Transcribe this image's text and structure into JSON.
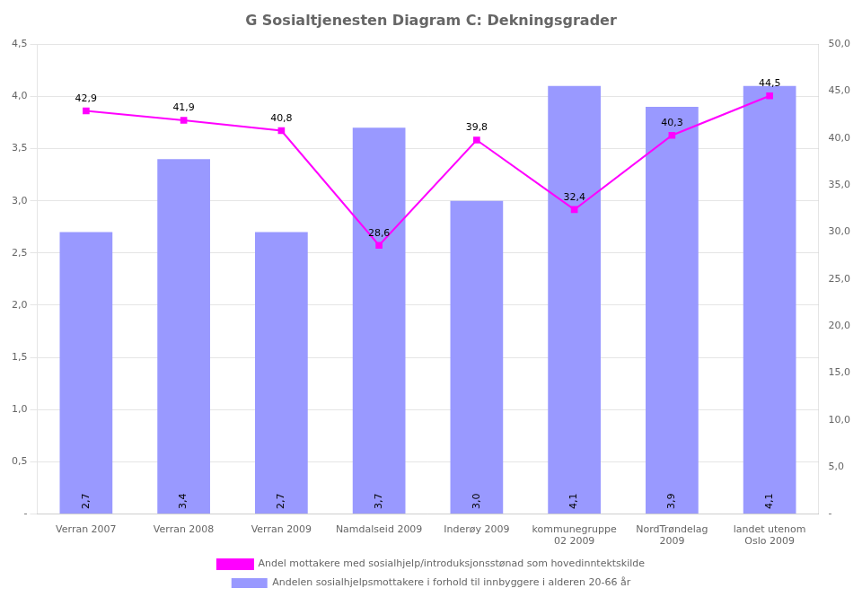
{
  "chart_data": {
    "type": "bar",
    "title": "G Sosialtjenesten Diagram C: Dekningsgrader",
    "categories": [
      "Verran 2007",
      "Verran 2008",
      "Verran 2009",
      "Namdalseid 2009",
      "Inderøy 2009",
      "kommunegruppe\n02 2009",
      "NordTrøndelag\n2009",
      "landet utenom\nOslo 2009"
    ],
    "series": [
      {
        "name": "Andelen sosialhjelpsmottakere i forhold til innbyggere i alderen 20-66 år",
        "type": "bar",
        "color": "#9999FF",
        "values": [
          2.7,
          3.4,
          2.7,
          3.7,
          3.0,
          4.1,
          3.9,
          4.1
        ],
        "value_labels": [
          "2,7",
          "3,4",
          "2,7",
          "3,7",
          "3,0",
          "4,1",
          "3,9",
          "4,1"
        ]
      },
      {
        "name": "Andel mottakere med sosialhjelp/introduksjonsstønad som hovedinntektskilde",
        "type": "line",
        "axis": "y2",
        "color": "#FF00FF",
        "marker": "square",
        "values": [
          42.9,
          41.9,
          40.8,
          28.6,
          39.8,
          32.4,
          40.3,
          44.5
        ],
        "value_labels": [
          "42,9",
          "41,9",
          "40,8",
          "28,6",
          "39,8",
          "32,4",
          "40,3",
          "44,5"
        ]
      }
    ],
    "ylim": [
      0.0,
      4.5
    ],
    "yticks": [
      {
        "value": 0.0,
        "label": "-"
      },
      {
        "value": 0.5,
        "label": "0,5"
      },
      {
        "value": 1.0,
        "label": "1,0"
      },
      {
        "value": 1.5,
        "label": "1,5"
      },
      {
        "value": 2.0,
        "label": "2,0"
      },
      {
        "value": 2.5,
        "label": "2,5"
      },
      {
        "value": 3.0,
        "label": "3,0"
      },
      {
        "value": 3.5,
        "label": "3,5"
      },
      {
        "value": 4.0,
        "label": "4,0"
      },
      {
        "value": 4.5,
        "label": "4,5"
      }
    ],
    "y2lim": [
      0.0,
      50.0
    ],
    "y2ticks": [
      {
        "value": 0.0,
        "label": "-"
      },
      {
        "value": 5.0,
        "label": "5,0"
      },
      {
        "value": 10.0,
        "label": "10,0"
      },
      {
        "value": 15.0,
        "label": "15,0"
      },
      {
        "value": 20.0,
        "label": "20,0"
      },
      {
        "value": 25.0,
        "label": "25,0"
      },
      {
        "value": 30.0,
        "label": "30,0"
      },
      {
        "value": 35.0,
        "label": "35,0"
      },
      {
        "value": 40.0,
        "label": "40,0"
      },
      {
        "value": 45.0,
        "label": "45,0"
      },
      {
        "value": 50.0,
        "label": "50,0"
      }
    ],
    "grid": true,
    "legend": "bottom",
    "data_labels": true
  }
}
